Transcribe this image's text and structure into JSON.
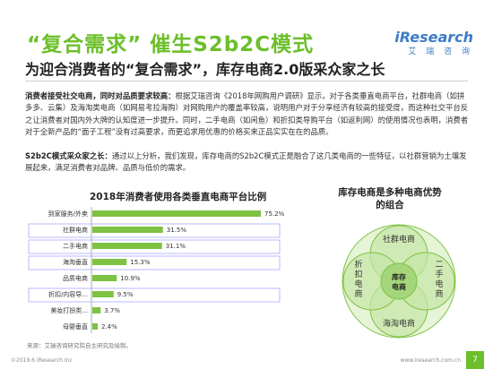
{
  "header": {
    "title": "“复合需求” 催生S2b2C模式",
    "subtitle": "为迎合消费者的“复合需求”，库存电商2.0版采众家之长",
    "logo_brand": "iResearch",
    "logo_sub": "艾 瑞 咨 询"
  },
  "body": {
    "p1_bold": "消费者接受社交电商，同时对品质要求较高：",
    "p1_text": "根据艾瑞咨询《2018年网购用户调研》显示，对于各类垂直电商平台，社群电商（如拼多多、云集）及海淘类电商（如网易考拉海购）对网购用户的覆盖率较高，说明用户对于分享经济有较高的接受度，而这种社交平台反之让消费者对国内外大牌的认知度进一步提升。同时，二手电商（如闲鱼）和折扣类导购平台（如返利网）的使用情况也表明，消费者对于全新产品的“面子工程”没有过高要求，而更追求用优惠的价格买来正品实实在在的品质。",
    "p2_bold": "S2b2C模式采众家之长：",
    "p2_text": "通过以上分析，我们发现，库存电商的S2b2C模式正是融合了这几类电商的一些特征，以社群营销为土壤发展起来，满足消费者对品牌、品质与低价的需求。"
  },
  "right_figure": {
    "title_line1": "库存电商是多种电商优势",
    "title_line2": "的组合",
    "labels": {
      "top": "社群电商",
      "left": "折扣电商",
      "right": "二手电商",
      "bottom": "海淘电商",
      "center": "库存电商"
    }
  },
  "footer": {
    "source": "来源：艾瑞咨询研究院自主研究及绘制。",
    "copyright": "©2019.6 iResearch Inc",
    "url": "www.iresearch.com.cn",
    "page": "7"
  },
  "colors": {
    "accent": "#6cbf2a",
    "bar": "#7dc243",
    "brand": "#3d7dc7",
    "highlight_border": "#a8a8ff"
  },
  "chart_data": {
    "type": "bar",
    "orientation": "horizontal",
    "title": "2018年消费者使用各类垂直电商平台比例",
    "categories": [
      "到家服务/外卖",
      "社群电商",
      "二手电商",
      "海淘垂直",
      "品质电商",
      "折扣/内容导...",
      "美妆打扮类...",
      "母婴垂直"
    ],
    "values": [
      75.2,
      31.5,
      31.1,
      15.3,
      10.9,
      9.5,
      3.7,
      2.4
    ],
    "value_labels": [
      "75.2%",
      "31.5%",
      "31.1%",
      "15.3%",
      "10.9%",
      "9.5%",
      "3.7%",
      "2.4%"
    ],
    "highlighted": [
      "社群电商",
      "二手电商",
      "海淘垂直",
      "折扣/内容导..."
    ],
    "xlim": [
      0,
      80
    ],
    "grid": false,
    "legend": "none"
  }
}
